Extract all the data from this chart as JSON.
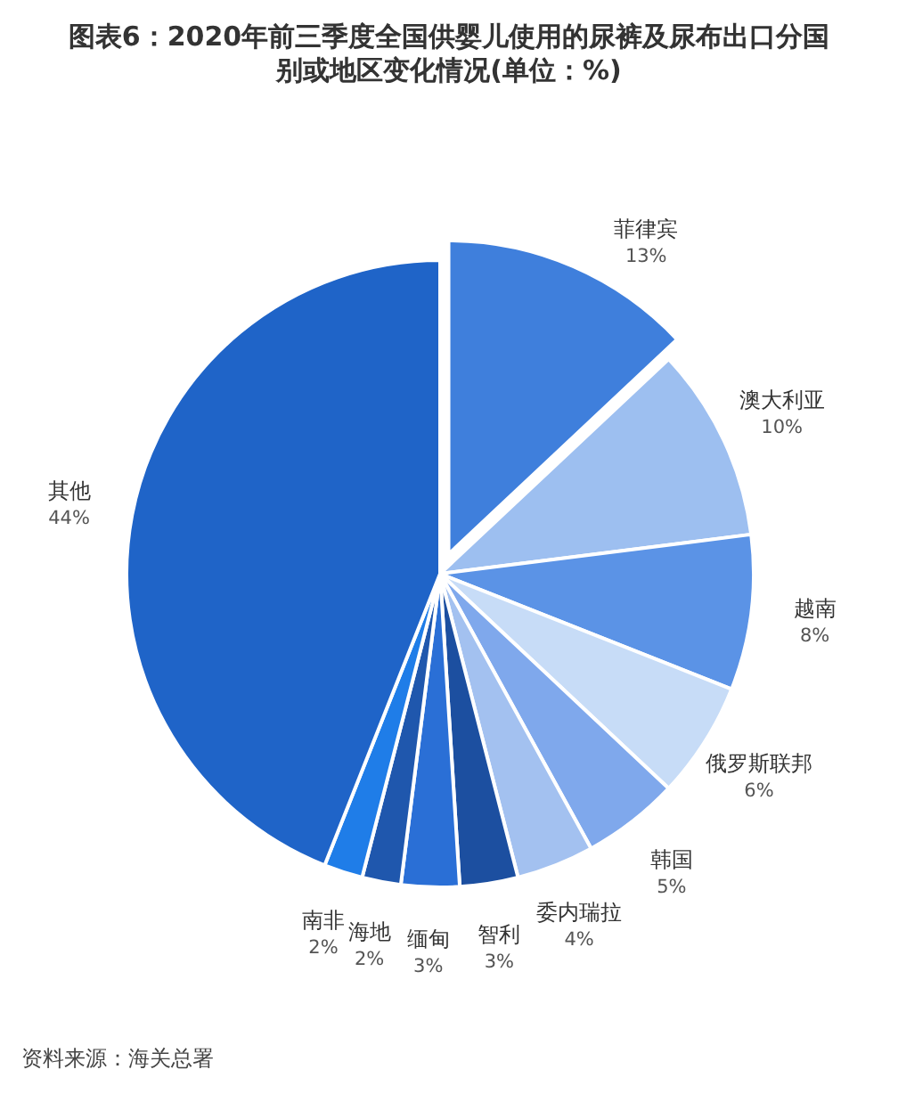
{
  "chart_data": {
    "type": "pie",
    "title": "图表6：2020年前三季度全国供婴儿使用的尿裤及尿布出口分国别或地区变化情况(单位：%)",
    "categories": [
      "菲律宾",
      "澳大利亚",
      "越南",
      "俄罗斯联邦",
      "韩国",
      "委内瑞拉",
      "智利",
      "缅甸",
      "海地",
      "南非",
      "其他"
    ],
    "values": [
      13,
      10,
      8,
      6,
      5,
      4,
      3,
      3,
      2,
      2,
      44
    ],
    "value_labels": [
      "13%",
      "10%",
      "8%",
      "6%",
      "5%",
      "4%",
      "3%",
      "3%",
      "2%",
      "2%",
      "44%"
    ],
    "colors": [
      "#3f7fdc",
      "#9dbff0",
      "#5b93e6",
      "#c7dcf7",
      "#7fa8ec",
      "#a3c1f0",
      "#1c4fa0",
      "#2a6fd6",
      "#1f57ad",
      "#1f7de8",
      "#1f64c8"
    ],
    "annotations": [
      "资料来源：海关总署"
    ]
  }
}
